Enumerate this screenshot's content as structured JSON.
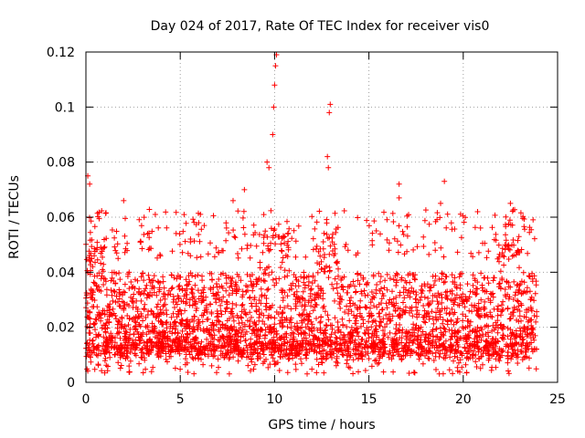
{
  "chart_data": {
    "type": "scatter",
    "title": "Day 024 of 2017, Rate Of TEC Index for receiver vis0",
    "xlabel": "GPS time / hours",
    "ylabel": "ROTI / TECUs",
    "xlim": [
      0,
      25
    ],
    "ylim": [
      0,
      0.12
    ],
    "xticks": [
      0,
      5,
      10,
      15,
      20,
      25
    ],
    "xtick_labels": [
      "0",
      "5",
      "10",
      "15",
      "20",
      "25"
    ],
    "yticks": [
      0,
      0.02,
      0.04,
      0.06,
      0.08,
      0.1,
      0.12
    ],
    "ytick_labels": [
      "0",
      "0.02",
      "0.04",
      "0.06",
      "0.08",
      "0.1",
      "0.12"
    ],
    "grid": true,
    "marker": "+",
    "color": "#ff0000",
    "data_extent_hours": [
      0,
      23.9
    ],
    "series": [
      {
        "name": "vis0",
        "note": "dense ROTI samples; bulk between ~0.005 and ~0.05 TECU/min",
        "peaks": [
          {
            "x": 0.1,
            "y": 0.075
          },
          {
            "x": 0.2,
            "y": 0.072
          },
          {
            "x": 2.0,
            "y": 0.066
          },
          {
            "x": 7.8,
            "y": 0.066
          },
          {
            "x": 8.4,
            "y": 0.07
          },
          {
            "x": 9.6,
            "y": 0.08
          },
          {
            "x": 9.7,
            "y": 0.078
          },
          {
            "x": 9.9,
            "y": 0.09
          },
          {
            "x": 9.95,
            "y": 0.1
          },
          {
            "x": 10.0,
            "y": 0.108
          },
          {
            "x": 10.05,
            "y": 0.115
          },
          {
            "x": 10.1,
            "y": 0.119
          },
          {
            "x": 12.8,
            "y": 0.082
          },
          {
            "x": 12.85,
            "y": 0.078
          },
          {
            "x": 12.9,
            "y": 0.098
          },
          {
            "x": 12.95,
            "y": 0.101
          },
          {
            "x": 16.6,
            "y": 0.072
          },
          {
            "x": 16.6,
            "y": 0.067
          },
          {
            "x": 18.8,
            "y": 0.065
          },
          {
            "x": 19.0,
            "y": 0.073
          },
          {
            "x": 22.5,
            "y": 0.065
          }
        ]
      }
    ]
  }
}
